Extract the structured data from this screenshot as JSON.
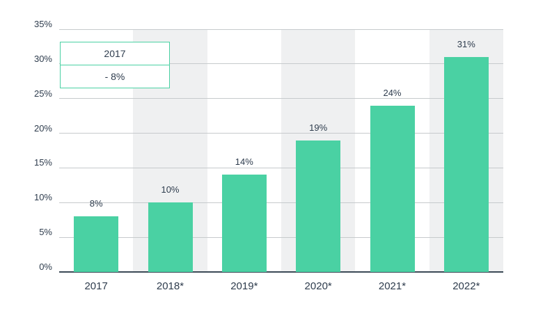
{
  "tooltip": {
    "header": "2017",
    "value": "- 8%"
  },
  "chart_data": {
    "type": "bar",
    "categories": [
      "2017",
      "2018*",
      "2019*",
      "2020*",
      "2021*",
      "2022*"
    ],
    "values": [
      8,
      10,
      14,
      19,
      24,
      31
    ],
    "value_labels": [
      "8%",
      "10%",
      "14%",
      "19%",
      "24%",
      "31%"
    ],
    "title": "",
    "xlabel": "",
    "ylabel": "",
    "ylim": [
      0,
      35
    ],
    "ytick_step": 5,
    "ytick_labels": [
      "0%",
      "5%",
      "10%",
      "15%",
      "20%",
      "25%",
      "30%",
      "35%"
    ],
    "grid": true,
    "legend_position": "none",
    "striped_columns": [
      1,
      3,
      5
    ],
    "colors": {
      "bar": "#4ad1a3",
      "stripe": "#eff0f1",
      "gridline": "#c6cacc",
      "axis": "#3b4956",
      "text": "#2e3c4d",
      "tooltip_border": "#4ad1a3",
      "background": "#ffffff"
    }
  }
}
